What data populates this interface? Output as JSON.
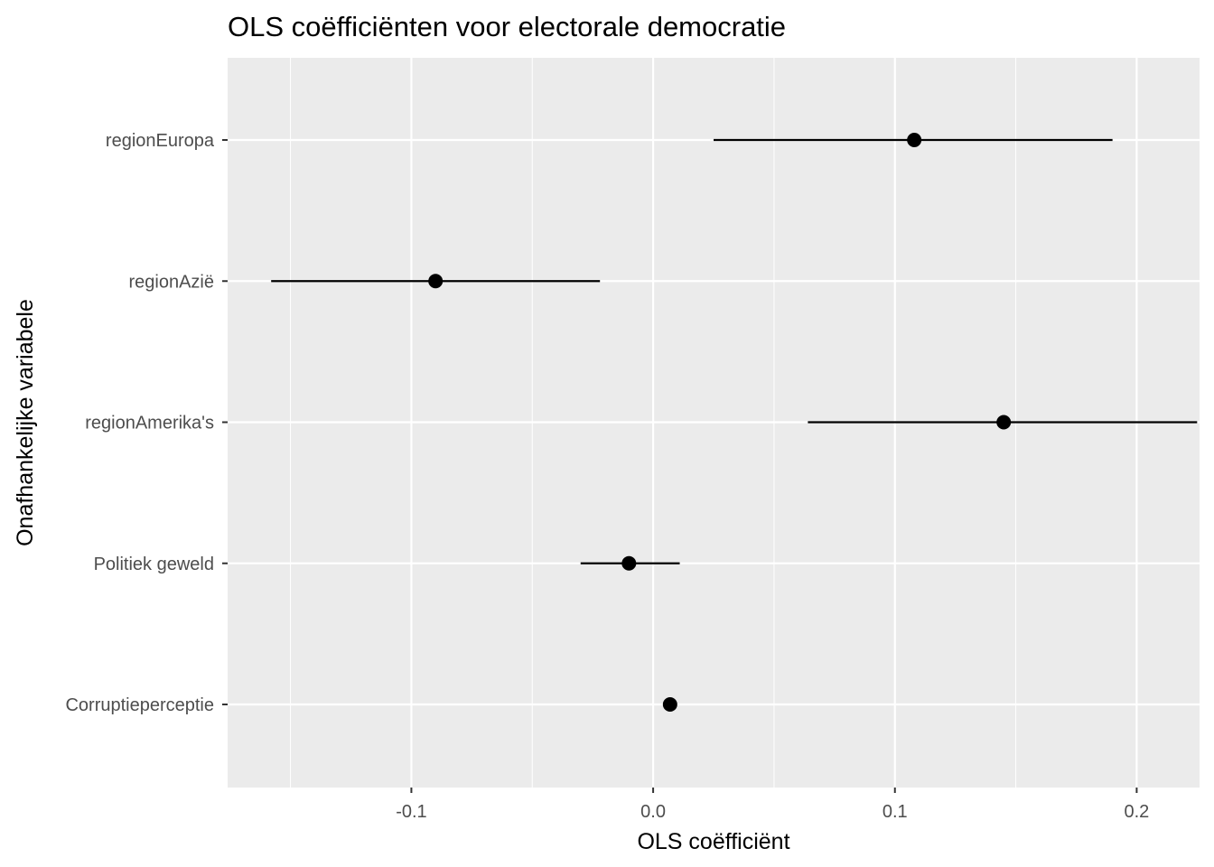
{
  "chart_data": {
    "type": "scatter",
    "title": "OLS coëfficiënten voor electorale democratie",
    "xlabel": "OLS coëfficiënt",
    "ylabel": "Onafhankelijke variabele",
    "xlim": [
      -0.176,
      0.226
    ],
    "x_ticks": [
      -0.1,
      0.0,
      0.1,
      0.2
    ],
    "x_tick_labels": [
      "-0.1",
      "0.0",
      "0.1",
      "0.2"
    ],
    "x_minor_ticks": [
      -0.15,
      -0.05,
      0.05,
      0.15
    ],
    "grid": true,
    "legend": "none",
    "categories": [
      "regionEuropa",
      "regionAzië",
      "regionAmerika's",
      "Politiek geweld",
      "Corruptieperceptie"
    ],
    "estimates": [
      0.108,
      -0.09,
      0.145,
      -0.01,
      0.007
    ],
    "ci_low": [
      0.025,
      -0.158,
      0.064,
      -0.03,
      0.007
    ],
    "ci_high": [
      0.19,
      -0.022,
      0.225,
      0.011,
      0.007
    ],
    "colors": {
      "panel": "#ebebeb",
      "grid": "#ffffff",
      "point": "#000000"
    }
  }
}
